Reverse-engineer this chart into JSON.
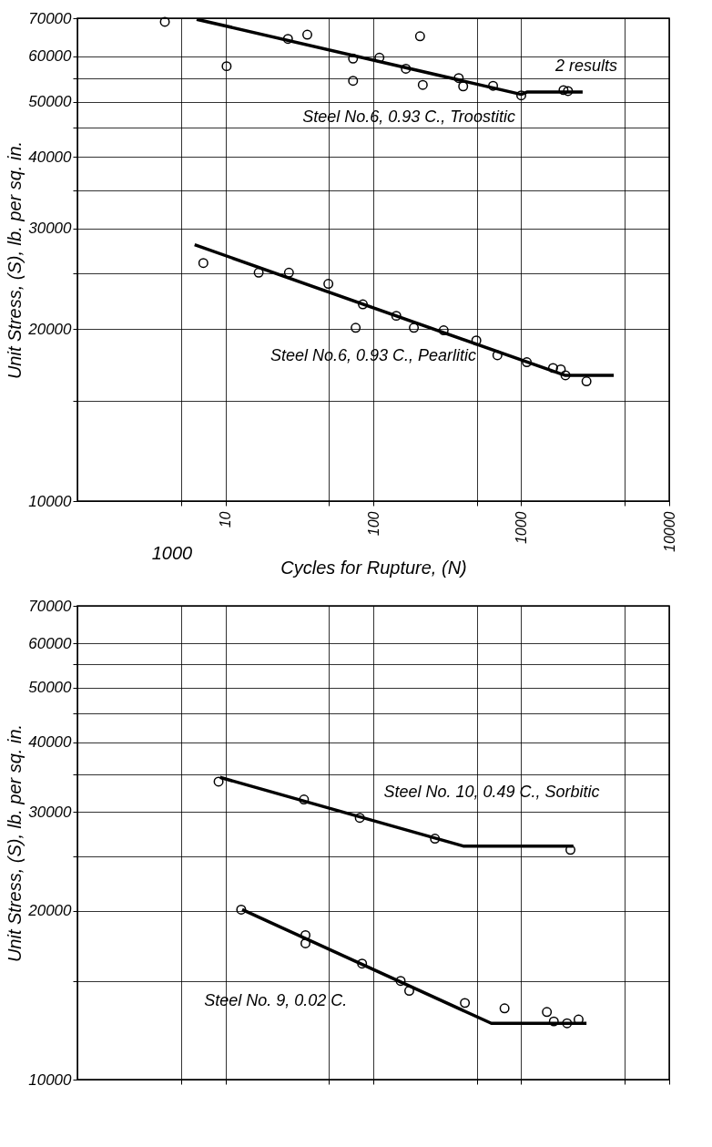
{
  "chart_data": [
    {
      "type": "scatter",
      "xlabel": "Cycles for Rupture, (N)",
      "ylabel": "Unit Stress, (S), lb. per sq. in.",
      "log": "xy",
      "grid": true,
      "xlim": [
        1,
        10000
      ],
      "xticks": [
        {
          "value": 5,
          "label": null
        },
        10,
        {
          "value": 50,
          "label": null
        },
        100,
        {
          "value": 500,
          "label": null
        },
        1000,
        {
          "value": 5000,
          "label": null
        },
        10000
      ],
      "ylim": [
        10000,
        70000
      ],
      "yticks": [
        10000,
        {
          "value": 15000,
          "label": null
        },
        20000,
        {
          "value": 25000,
          "label": null
        },
        30000,
        {
          "value": 35000,
          "label": null
        },
        40000,
        {
          "value": 45000,
          "label": null
        },
        50000,
        {
          "value": 55000,
          "label": null
        },
        60000,
        70000
      ],
      "series": [
        {
          "type": "scatter",
          "marker": "circle",
          "color": "#000000",
          "x": [
            3.9,
            10.2,
            26.5,
            35.8,
            73,
            73,
            110,
            207,
            166,
            216,
            378,
            405,
            645,
            1000,
            1930,
            2070
          ],
          "values": [
            69000,
            57700,
            64400,
            65500,
            59500,
            54400,
            59700,
            65100,
            57100,
            53500,
            55000,
            53200,
            53300,
            51300,
            52400,
            52200
          ]
        },
        {
          "type": "line",
          "name": "Steel No.6, 0.93 C., Troostitic",
          "color": "#000000",
          "x": [
            6.4,
            1000,
            1100,
            2600
          ],
          "values": [
            69700,
            51500,
            52000,
            52000
          ]
        },
        {
          "type": "scatter",
          "marker": "circle",
          "color": "#000000",
          "x": [
            7.1,
            16.8,
            26.9,
            49.7,
            85,
            76,
            143,
            188,
            299,
            497,
            690,
            1090,
            1640,
            1850,
            1990,
            2760
          ],
          "values": [
            26100,
            25100,
            25100,
            24000,
            22100,
            20100,
            21100,
            20100,
            19900,
            19100,
            18000,
            17500,
            17100,
            17000,
            16600,
            16200
          ]
        },
        {
          "type": "line",
          "name": "Steel No.6, 0.93 C., Pearlitic",
          "color": "#000000",
          "x": [
            6.2,
            1970,
            4220
          ],
          "values": [
            28100,
            16600,
            16600
          ]
        }
      ],
      "annotations": [
        "1000",
        "2 results"
      ]
    },
    {
      "type": "scatter",
      "ylabel": "Unit Stress, (S), lb. per sq. in.",
      "log": "xy",
      "grid": true,
      "tick_labels": "y",
      "xlim": [
        1,
        10000
      ],
      "xticks": [
        {
          "value": 5,
          "label": null
        },
        10,
        {
          "value": 50,
          "label": null
        },
        100,
        {
          "value": 500,
          "label": null
        },
        1000,
        {
          "value": 5000,
          "label": null
        },
        10000
      ],
      "ylim": [
        10000,
        70000
      ],
      "yticks": [
        10000,
        {
          "value": 15000,
          "label": null
        },
        20000,
        {
          "value": 25000,
          "label": null
        },
        30000,
        {
          "value": 35000,
          "label": null
        },
        40000,
        {
          "value": 45000,
          "label": null
        },
        50000,
        {
          "value": 55000,
          "label": null
        },
        60000,
        70000
      ],
      "series": [
        {
          "type": "scatter",
          "marker": "circle",
          "color": "#000000",
          "x": [
            9.0,
            34,
            81,
            261,
            2150
          ],
          "values": [
            34000,
            31600,
            29300,
            26900,
            25700
          ]
        },
        {
          "type": "line",
          "name": "Steel No. 10, 0.49 C., Sorbitic",
          "color": "#000000",
          "x": [
            9.2,
            405,
            2250
          ],
          "values": [
            34600,
            26100,
            26100
          ]
        },
        {
          "type": "scatter",
          "marker": "circle",
          "color": "#000000",
          "x": [
            12.8,
            34.8,
            34.8,
            84,
            153,
            175,
            416,
            771,
            1490,
            1660,
            2040,
            2440
          ],
          "values": [
            20100,
            18100,
            17500,
            16100,
            15000,
            14400,
            13700,
            13400,
            13200,
            12700,
            12600,
            12800
          ]
        },
        {
          "type": "line",
          "name": "Steel No. 9, 0.02 C.",
          "color": "#000000",
          "x": [
            13,
            628,
            2760
          ],
          "values": [
            20100,
            12600,
            12600
          ]
        }
      ]
    }
  ]
}
